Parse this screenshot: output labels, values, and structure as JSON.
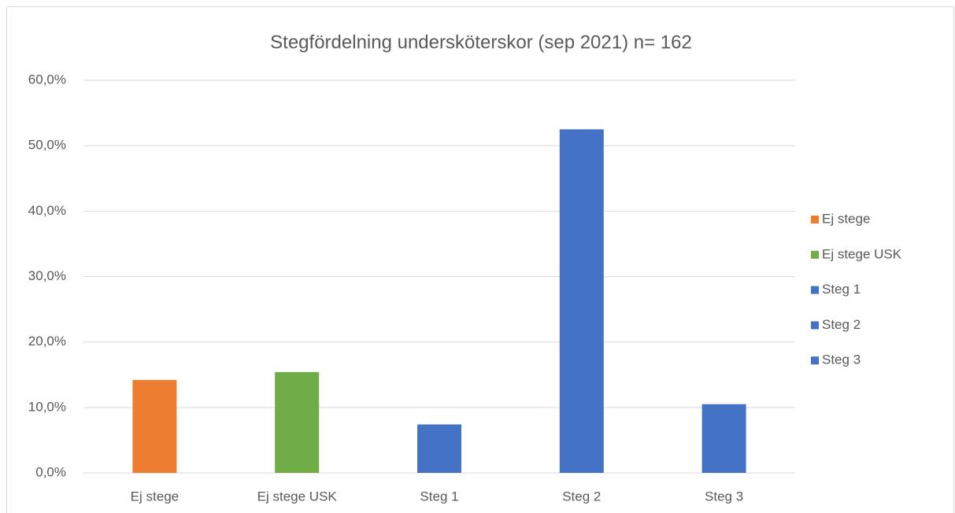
{
  "chart_data": {
    "type": "bar",
    "title": "Stegfördelning undersköterskor (sep 2021) n= 162",
    "categories": [
      "Ej stege",
      "Ej stege USK",
      "Steg 1",
      "Steg 2",
      "Steg 3"
    ],
    "values": [
      14.2,
      15.4,
      7.4,
      52.5,
      10.5
    ],
    "colors": [
      "#ed7d31",
      "#70ad47",
      "#4472c4",
      "#4472c4",
      "#4472c4"
    ],
    "ylim": [
      0,
      60
    ],
    "yticks": [
      {
        "value": 0,
        "label": "0,0%"
      },
      {
        "value": 10,
        "label": "10,0%"
      },
      {
        "value": 20,
        "label": "20,0%"
      },
      {
        "value": 30,
        "label": "30,0%"
      },
      {
        "value": 40,
        "label": "40,0%"
      },
      {
        "value": 50,
        "label": "50,0%"
      },
      {
        "value": 60,
        "label": "60,0%"
      }
    ],
    "grid": true,
    "legend": "right"
  }
}
